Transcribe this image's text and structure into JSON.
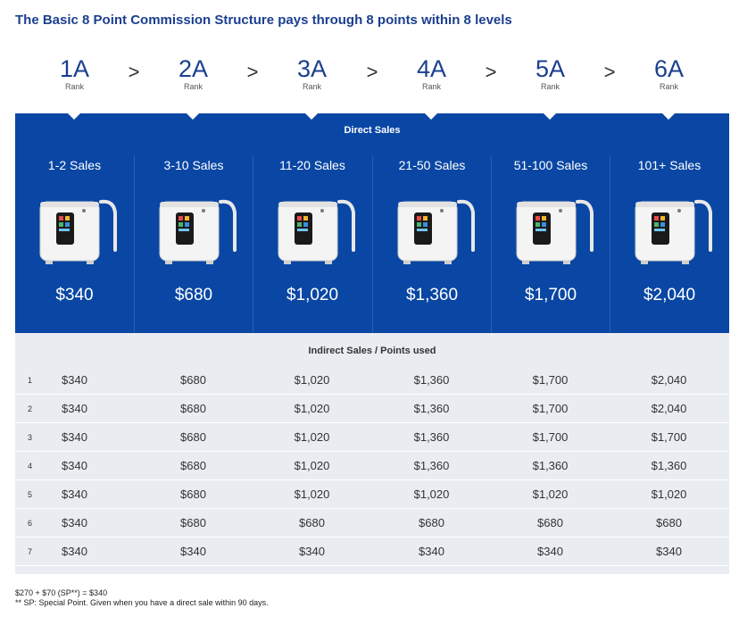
{
  "title": "The Basic 8 Point Commission Structure pays through 8 points within 8 levels",
  "ranks": [
    {
      "code": "1A",
      "label": "Rank"
    },
    {
      "code": "2A",
      "label": "Rank"
    },
    {
      "code": "3A",
      "label": "Rank"
    },
    {
      "code": "4A",
      "label": "Rank"
    },
    {
      "code": "5A",
      "label": "Rank"
    },
    {
      "code": "6A",
      "label": "Rank"
    }
  ],
  "separator": ">",
  "direct": {
    "label": "Direct Sales",
    "columns": [
      {
        "sales": "1-2 Sales",
        "price": "$340"
      },
      {
        "sales": "3-10 Sales",
        "price": "$680"
      },
      {
        "sales": "11-20 Sales",
        "price": "$1,020"
      },
      {
        "sales": "21-50 Sales",
        "price": "$1,360"
      },
      {
        "sales": "51-100 Sales",
        "price": "$1,700"
      },
      {
        "sales": "101+ Sales",
        "price": "$2,040"
      }
    ]
  },
  "indirect": {
    "label": "Indirect Sales / Points used",
    "rows": [
      {
        "level": "1",
        "values": [
          "$340",
          "$680",
          "$1,020",
          "$1,360",
          "$1,700",
          "$2,040"
        ]
      },
      {
        "level": "2",
        "values": [
          "$340",
          "$680",
          "$1,020",
          "$1,360",
          "$1,700",
          "$2,040"
        ]
      },
      {
        "level": "3",
        "values": [
          "$340",
          "$680",
          "$1,020",
          "$1,360",
          "$1,700",
          "$1,700"
        ]
      },
      {
        "level": "4",
        "values": [
          "$340",
          "$680",
          "$1,020",
          "$1,360",
          "$1,360",
          "$1,360"
        ]
      },
      {
        "level": "5",
        "values": [
          "$340",
          "$680",
          "$1,020",
          "$1,020",
          "$1,020",
          "$1,020"
        ]
      },
      {
        "level": "6",
        "values": [
          "$340",
          "$680",
          "$680",
          "$680",
          "$680",
          "$680"
        ]
      },
      {
        "level": "7",
        "values": [
          "$340",
          "$340",
          "$340",
          "$340",
          "$340",
          "$340"
        ]
      }
    ]
  },
  "notes": {
    "line1": "$270 + $70 (SP**) = $340",
    "line2": "** SP: Special Point. Given when you have a direct sale within 90 days."
  },
  "colors": {
    "brand_blue": "#0a47a4",
    "title_blue": "#1b3f8f",
    "table_gray": "#e9ecf1"
  }
}
